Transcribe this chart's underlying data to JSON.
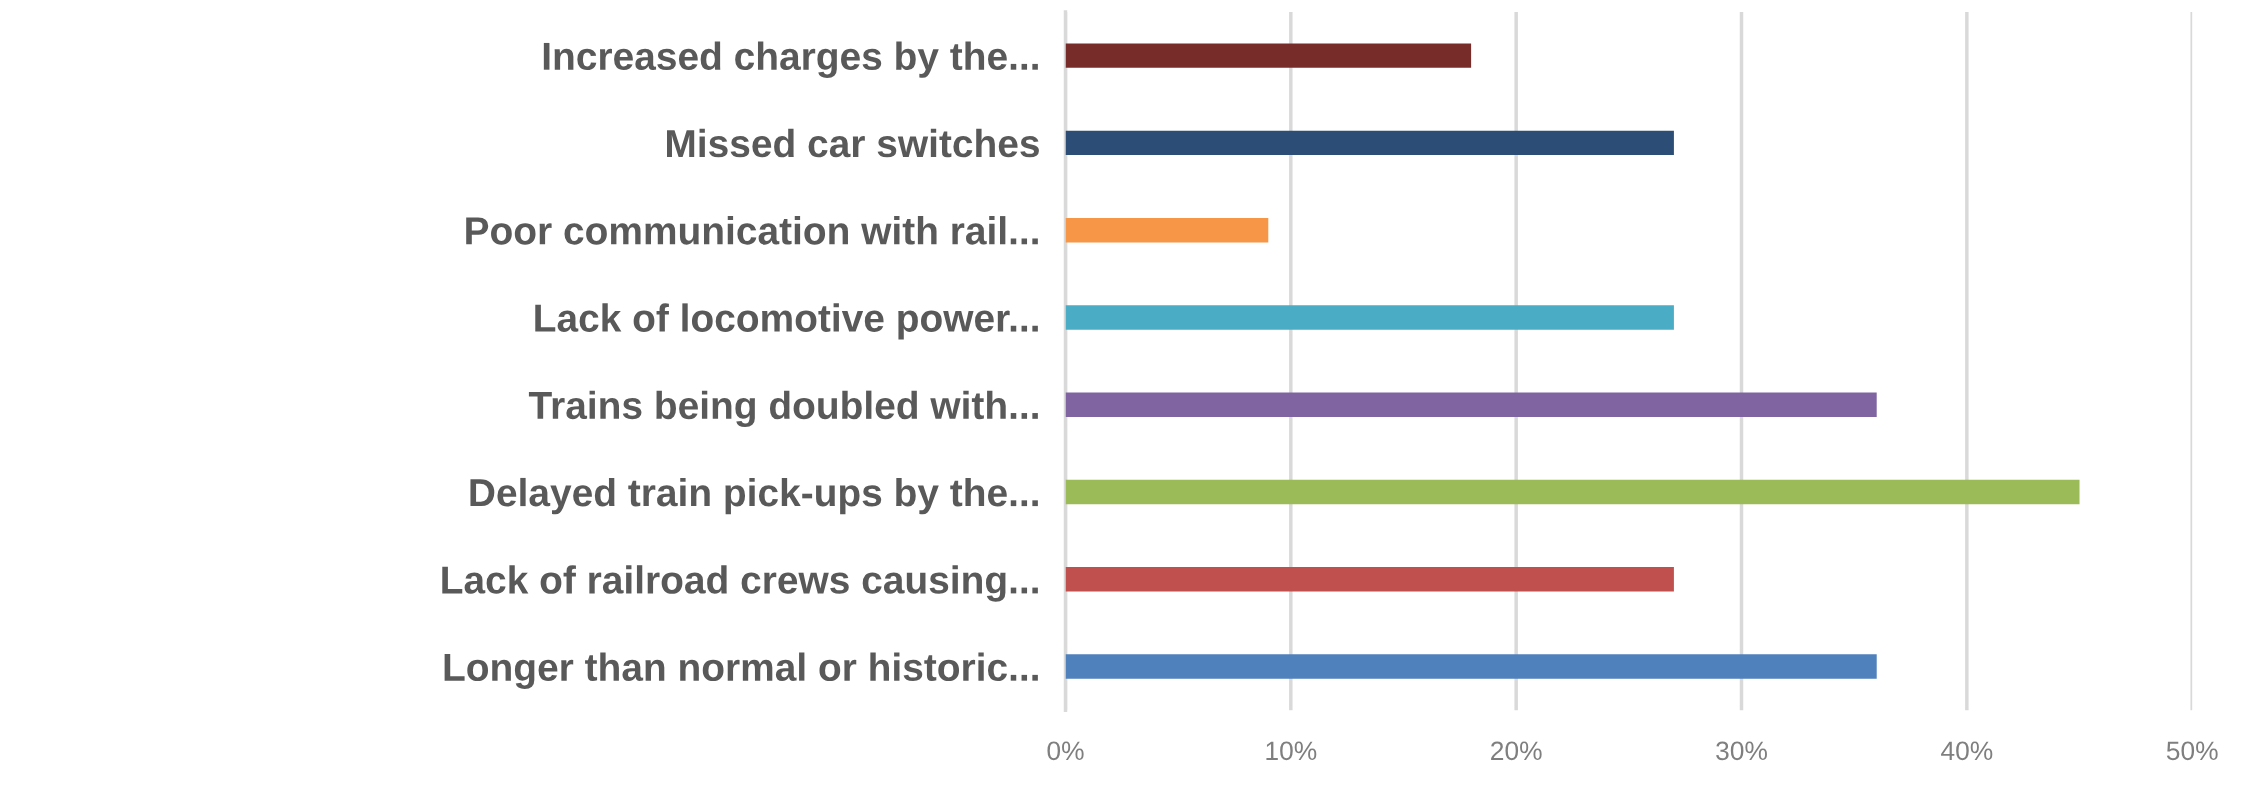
{
  "chart_data": {
    "type": "bar",
    "orientation": "horizontal",
    "categories": [
      "Increased charges by the...",
      "Missed car switches",
      "Poor communication with rail...",
      "Lack of locomotive power...",
      "Trains being doubled with...",
      "Delayed train pick-ups by the...",
      "Lack of railroad crews causing...",
      "Longer than normal or historic..."
    ],
    "values": [
      18,
      27,
      9,
      27,
      36,
      45,
      27,
      36
    ],
    "colors": [
      "#772c2a",
      "#2c4d75",
      "#f79646",
      "#4bacc6",
      "#8064a2",
      "#9bbb59",
      "#c0504d",
      "#4f81bd"
    ],
    "xlim": [
      0,
      50
    ],
    "xticks": [
      {
        "value": 0,
        "label": "0%"
      },
      {
        "value": 10,
        "label": "10%"
      },
      {
        "value": 20,
        "label": "20%"
      },
      {
        "value": 30,
        "label": "30%"
      },
      {
        "value": 40,
        "label": "40%"
      },
      {
        "value": 50,
        "label": "50%"
      }
    ],
    "grid": "x"
  }
}
